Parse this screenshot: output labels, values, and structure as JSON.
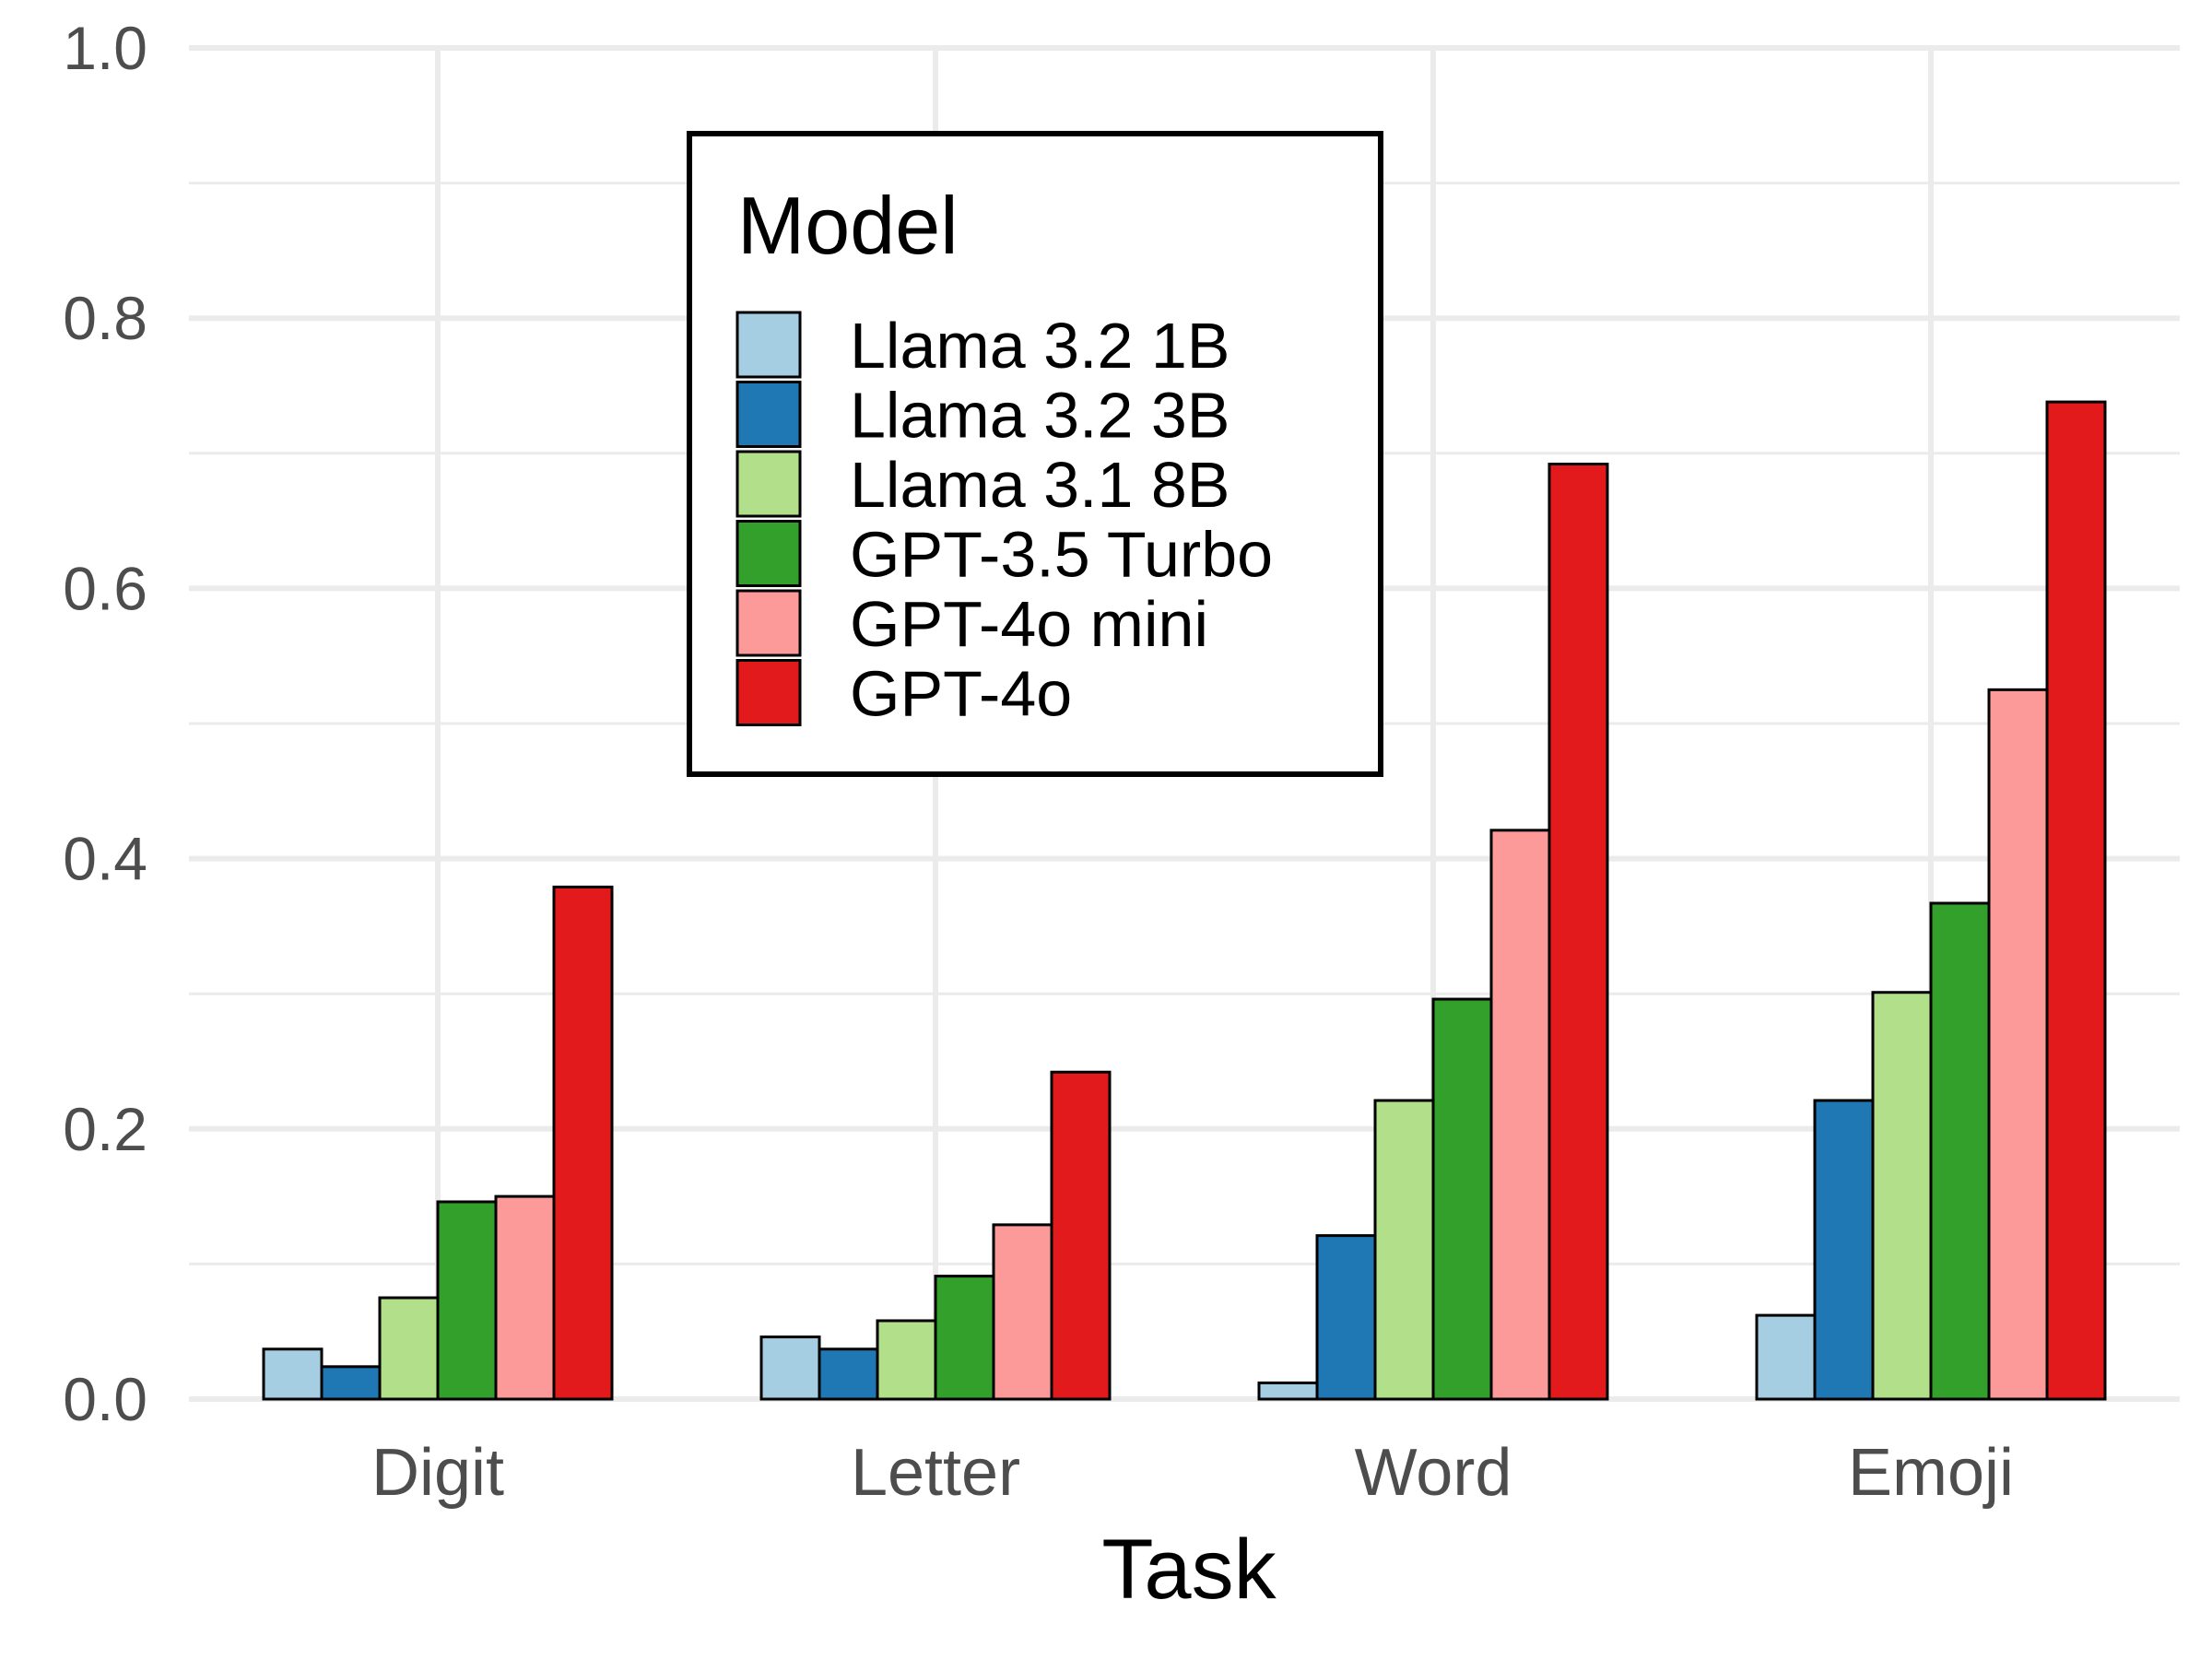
{
  "chart_data": {
    "type": "bar",
    "title": "",
    "xlabel": "Task",
    "ylabel": "",
    "ylim": [
      0,
      1.0
    ],
    "yticks": [
      0.0,
      0.2,
      0.4,
      0.6,
      0.8,
      1.0
    ],
    "ytick_labels": [
      "0.0",
      "0.2",
      "0.4",
      "0.6",
      "0.8",
      "1.0"
    ],
    "grid": true,
    "legend_title": "Model",
    "legend_position": "top-center",
    "categories": [
      "Digit",
      "Letter",
      "Word",
      "Emoji"
    ],
    "series": [
      {
        "name": "Llama 3.2 1B",
        "color": "#a6cee3",
        "values": [
          0.037,
          0.046,
          0.012,
          0.062
        ]
      },
      {
        "name": "Llama 3.2 3B",
        "color": "#1f78b4",
        "values": [
          0.024,
          0.037,
          0.121,
          0.221
        ]
      },
      {
        "name": "Llama 3.1 8B",
        "color": "#b2df8a",
        "values": [
          0.075,
          0.058,
          0.221,
          0.301
        ]
      },
      {
        "name": "GPT-3.5 Turbo",
        "color": "#33a02c",
        "values": [
          0.146,
          0.091,
          0.296,
          0.367
        ]
      },
      {
        "name": "GPT-4o mini",
        "color": "#fb9a99",
        "values": [
          0.15,
          0.129,
          0.421,
          0.525
        ]
      },
      {
        "name": "GPT-4o",
        "color": "#e31a1c",
        "values": [
          0.379,
          0.242,
          0.692,
          0.738
        ]
      }
    ]
  }
}
